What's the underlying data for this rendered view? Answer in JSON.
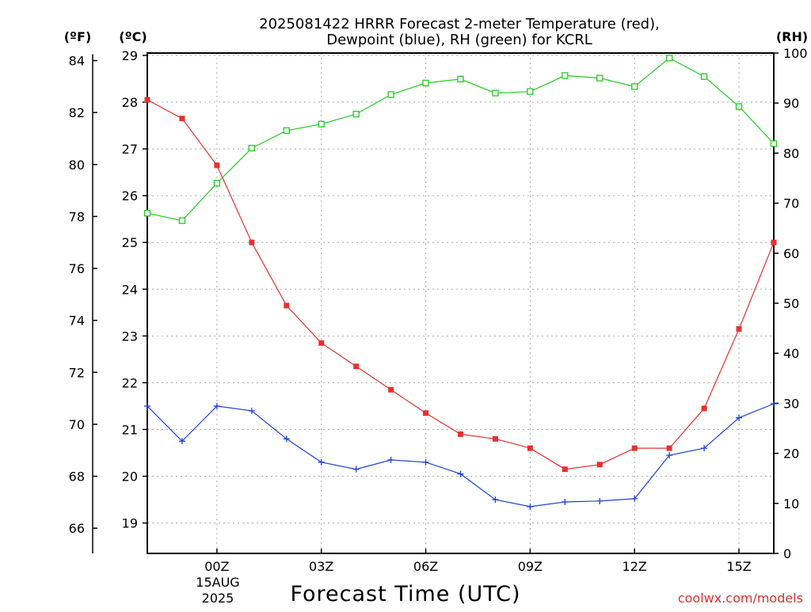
{
  "chart_data": {
    "type": "line",
    "title_line1": "2025081422 HRRR Forecast 2-meter Temperature (red),",
    "title_line2": "Dewpoint (blue), RH (green) for KCRL",
    "xlabel": "Forecast Time (UTC)",
    "date_label_line1": "15AUG",
    "date_label_line2": "2025",
    "watermark": "coolwx.com/models",
    "unit_f": "(ºF)",
    "unit_c": "(ºC)",
    "unit_rh": "(RH)",
    "x_ticks": [
      "00Z",
      "03Z",
      "06Z",
      "09Z",
      "12Z",
      "15Z"
    ],
    "x_tick_hours": [
      2,
      5,
      8,
      11,
      14,
      17
    ],
    "x_range_hours": [
      0,
      18
    ],
    "y_celsius_range": [
      18.35,
      29.05
    ],
    "y_celsius_ticks": [
      19,
      20,
      21,
      22,
      23,
      24,
      25,
      26,
      27,
      28,
      29
    ],
    "y_fahrenheit_ticks": [
      66,
      68,
      70,
      72,
      74,
      76,
      78,
      80,
      82,
      84
    ],
    "y_rh_range": [
      0,
      100
    ],
    "y_rh_ticks": [
      0,
      10,
      20,
      30,
      40,
      50,
      60,
      70,
      80,
      90,
      100
    ],
    "grid": true,
    "hours": [
      0,
      1,
      2,
      3,
      4,
      5,
      6,
      7,
      8,
      9,
      10,
      11,
      12,
      13,
      14,
      15,
      16,
      17,
      18
    ],
    "series": [
      {
        "name": "2-meter Temperature",
        "color": "#e83030",
        "marker": "filled-square",
        "axis": "celsius",
        "values": [
          28.05,
          27.65,
          26.65,
          25.0,
          23.65,
          22.85,
          22.35,
          21.85,
          21.35,
          20.9,
          20.8,
          20.6,
          20.15,
          20.25,
          20.6,
          20.6,
          21.45,
          23.15,
          25.0
        ]
      },
      {
        "name": "Dewpoint",
        "color": "#2040e0",
        "marker": "plus",
        "axis": "celsius",
        "values": [
          21.5,
          20.75,
          21.5,
          21.4,
          20.8,
          20.3,
          20.15,
          20.35,
          20.3,
          20.05,
          19.5,
          19.35,
          19.45,
          19.47,
          19.52,
          20.45,
          20.6,
          21.25,
          21.55
        ]
      },
      {
        "name": "RH",
        "color": "#20cc20",
        "marker": "open-square",
        "axis": "rh",
        "values": [
          68,
          66.5,
          74,
          81,
          84.5,
          85.8,
          87.8,
          91.7,
          94,
          94.8,
          92,
          92.3,
          95.5,
          95,
          93.3,
          99,
          95.3,
          89.3,
          81.9
        ]
      }
    ]
  }
}
